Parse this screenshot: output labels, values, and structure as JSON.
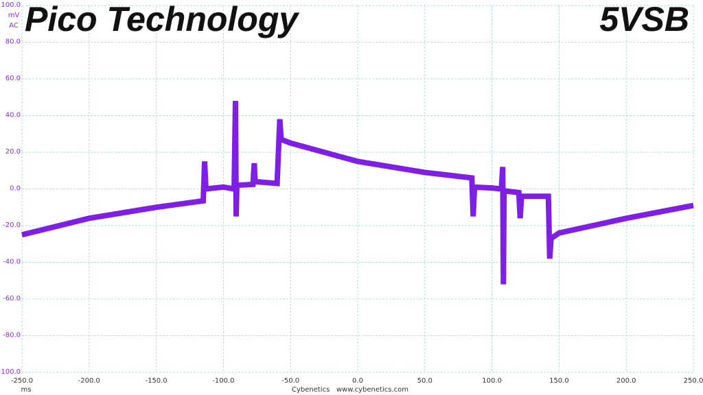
{
  "chart_data": {
    "type": "line",
    "title": "Pico Technology",
    "subtitle": "5VSB",
    "y_unit": "mV",
    "y_coupling": "AC",
    "x_unit": "ms",
    "footer": "Cybenetics   www.cybenetics.com",
    "xlim": [
      -250,
      250
    ],
    "ylim": [
      -100,
      100
    ],
    "xticks": [
      {
        "value": -250,
        "label": "-250.0"
      },
      {
        "value": -200,
        "label": "-200.0"
      },
      {
        "value": -150,
        "label": "-150.0"
      },
      {
        "value": -100,
        "label": "-100.0"
      },
      {
        "value": -50,
        "label": "-50.0"
      },
      {
        "value": 0,
        "label": "0.0"
      },
      {
        "value": 50,
        "label": "50.0"
      },
      {
        "value": 100,
        "label": "100.0"
      },
      {
        "value": 150,
        "label": "150.0"
      },
      {
        "value": 200,
        "label": "200.0"
      },
      {
        "value": 250,
        "label": "250.0"
      }
    ],
    "yticks": [
      {
        "value": -100,
        "label": "-100.0"
      },
      {
        "value": -80,
        "label": "-80.0"
      },
      {
        "value": -60,
        "label": "-60.0"
      },
      {
        "value": -40,
        "label": "-40.0"
      },
      {
        "value": -20,
        "label": "-20.0"
      },
      {
        "value": 0,
        "label": "0.0"
      },
      {
        "value": 20,
        "label": "20.0"
      },
      {
        "value": 40,
        "label": "40.0"
      },
      {
        "value": 60,
        "label": "60.0"
      },
      {
        "value": 80,
        "label": "80.0"
      },
      {
        "value": 100,
        "label": "100.0"
      }
    ],
    "grid": true,
    "x": [
      -250,
      -200,
      -150,
      -115,
      -114,
      -113,
      -100,
      -92,
      -91,
      -90.5,
      -90,
      -78,
      -77,
      -76.5,
      -60,
      -58,
      -57,
      -50,
      0,
      50,
      85,
      86,
      87,
      100,
      107,
      108,
      108.5,
      109,
      120,
      121,
      122,
      142,
      143,
      144,
      150,
      200,
      250
    ],
    "series": [
      {
        "color": "#7f1fe6",
        "values": [
          -25,
          -16,
          -10,
          -6.5,
          15,
          0,
          1,
          0,
          48,
          -15,
          2,
          2.5,
          14,
          4,
          3,
          38,
          27,
          25,
          15,
          9,
          6,
          -15,
          1,
          0.5,
          0,
          12,
          -52,
          -1,
          -2,
          -16,
          -4,
          -4,
          -38,
          -27,
          -24,
          -16,
          -9
        ]
      }
    ]
  }
}
